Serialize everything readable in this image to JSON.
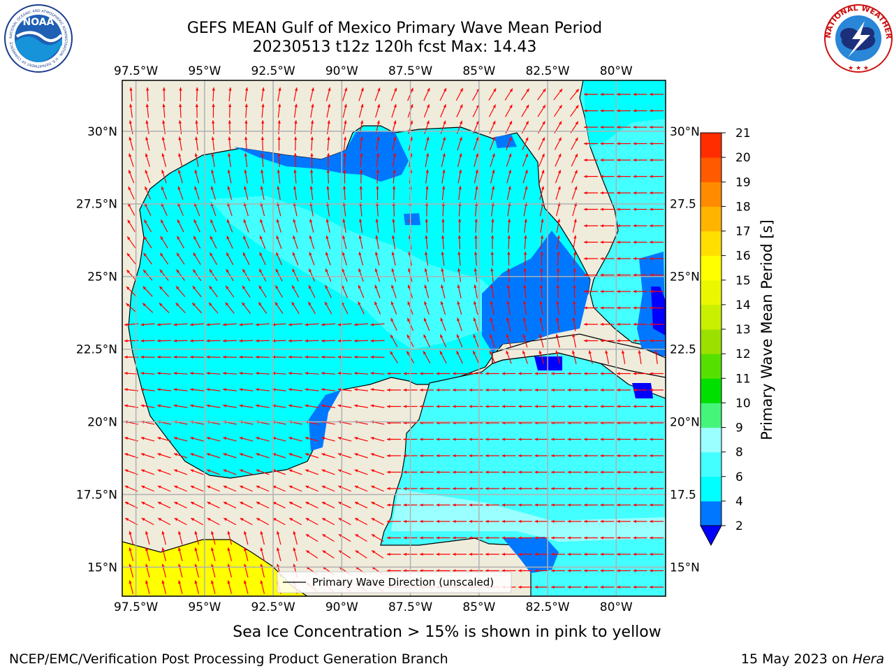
{
  "title": {
    "line1": "GEFS MEAN Gulf of Mexico Primary Wave Mean Period",
    "line2": "20230513 t12z 120h fcst   Max: 14.43"
  },
  "logos": {
    "noaa_text": "NOAA",
    "noaa_ring_text": "NATIONAL OCEANIC AND ATMOSPHERIC ADMINISTRATION · U.S. DEPARTMENT OF COMMERCE",
    "nws_ring_text": "NATIONAL WEATHER SERVICE"
  },
  "map": {
    "lon_range": [
      -98.0,
      -78.2
    ],
    "lat_range": [
      14.0,
      31.75
    ],
    "lon_ticks": [
      "97.5°W",
      "95°W",
      "92.5°W",
      "90°W",
      "87.5°W",
      "85°W",
      "82.5°W",
      "80°W"
    ],
    "lon_tick_values": [
      -97.5,
      -95,
      -92.5,
      -90,
      -87.5,
      -85,
      -82.5,
      -80
    ],
    "lat_ticks_left": [
      "30°N",
      "27.5°N",
      "25°N",
      "22.5°N",
      "20°N",
      "17.5°N",
      "15°N"
    ],
    "lat_ticks_right": [
      "30°N",
      "27.5",
      "25°N",
      "22.5",
      "20°N",
      "17.5",
      "15°N"
    ],
    "lat_tick_values": [
      30,
      27.5,
      25,
      22.5,
      20,
      17.5,
      15
    ],
    "grid": true,
    "land_color": "#efecdc",
    "vector_color": "#ff0000"
  },
  "legend": {
    "label": "Primary Wave Direction (unscaled)"
  },
  "colorbar": {
    "label": "Primary Wave Mean Period [s]",
    "ticks": [
      "2",
      "4",
      "6",
      "8",
      "9",
      "10",
      "11",
      "12",
      "13",
      "14",
      "15",
      "16",
      "17",
      "18",
      "19",
      "20",
      "21"
    ],
    "levels": [
      2,
      4,
      6,
      8,
      9,
      10,
      11,
      12,
      13,
      14,
      15,
      16,
      17,
      18,
      19,
      20,
      21
    ],
    "colors": [
      "#0077ff",
      "#00ffff",
      "#44ffff",
      "#9cffff",
      "#44f57a",
      "#00e000",
      "#55e000",
      "#9ce000",
      "#c8f000",
      "#ebf700",
      "#ffff00",
      "#ffdf00",
      "#ffb400",
      "#ff8c00",
      "#ff5a00",
      "#ff2d00",
      "#ff0000"
    ],
    "under_color": "#0000ff"
  },
  "caption": "Sea Ice Concentration > 15% is shown in pink to yellow",
  "footer": {
    "left": "NCEP/EMC/Verification Post Processing Product Generation Branch",
    "right_prefix": "15 May 2023 on ",
    "right_host": "Hera"
  }
}
